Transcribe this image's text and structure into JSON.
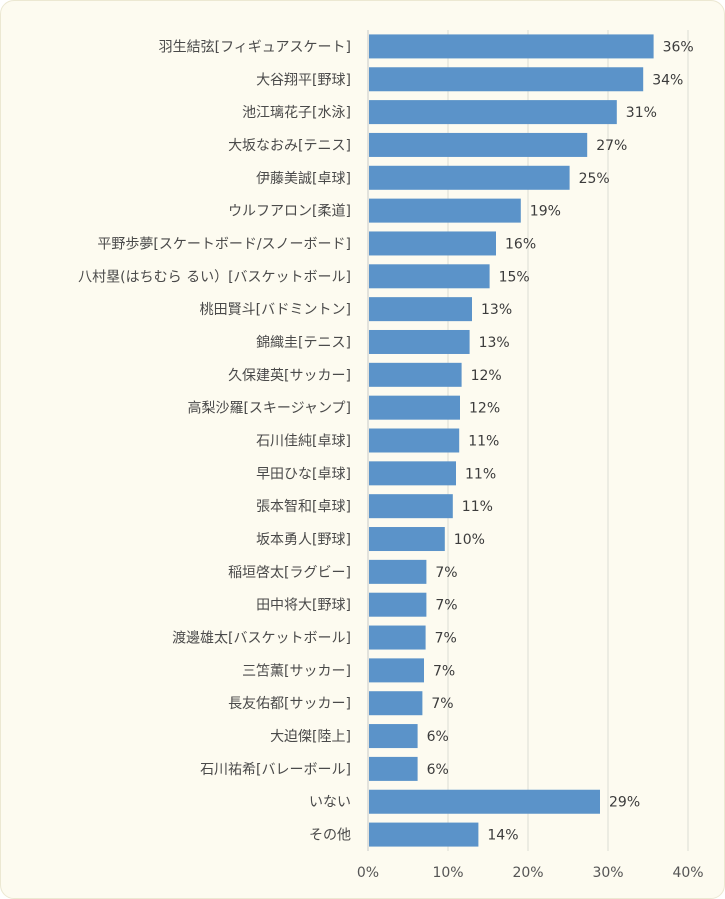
{
  "chart_data": {
    "type": "bar",
    "orientation": "horizontal",
    "categories": [
      "羽生結弦[フィギュアスケート]",
      "大谷翔平[野球]",
      "池江璃花子[水泳]",
      "大坂なおみ[テニス]",
      "伊藤美誠[卓球]",
      "ウルフアロン[柔道]",
      "平野歩夢[スケートボード/スノーボード]",
      "八村塁(はちむら るい）[バスケットボール]",
      "桃田賢斗[バドミントン]",
      "錦織圭[テニス]",
      "久保建英[サッカー]",
      "高梨沙羅[スキージャンプ]",
      "石川佳純[卓球]",
      "早田ひな[卓球]",
      "張本智和[卓球]",
      "坂本勇人[野球]",
      "稲垣啓太[ラグビー]",
      "田中将大[野球]",
      "渡邊雄太[バスケットボール]",
      "三笘薫[サッカー]",
      "長友佑都[サッカー]",
      "大迫傑[陸上]",
      "石川祐希[バレーボール]",
      "いない",
      "その他"
    ],
    "values": [
      35.7,
      34.4,
      31.1,
      27.4,
      25.2,
      19.1,
      16.0,
      15.2,
      13.0,
      12.7,
      11.7,
      11.5,
      11.4,
      11.0,
      10.6,
      9.6,
      7.3,
      7.3,
      7.2,
      7.0,
      6.8,
      6.2,
      6.2,
      29.0,
      13.8
    ],
    "value_labels": [
      "36%",
      "34%",
      "31%",
      "27%",
      "25%",
      "19%",
      "16%",
      "15%",
      "13%",
      "13%",
      "12%",
      "12%",
      "11%",
      "11%",
      "11%",
      "10%",
      "7%",
      "7%",
      "7%",
      "7%",
      "7%",
      "6%",
      "6%",
      "29%",
      "14%"
    ],
    "x_ticks": [
      0,
      10,
      20,
      30,
      40
    ],
    "x_tick_labels": [
      "0%",
      "10%",
      "20%",
      "30%",
      "40%"
    ],
    "xlim": [
      0,
      40
    ],
    "grid": true,
    "legend": "none",
    "bar_color": "#5b93c9",
    "title": "",
    "xlabel": "",
    "ylabel": ""
  }
}
